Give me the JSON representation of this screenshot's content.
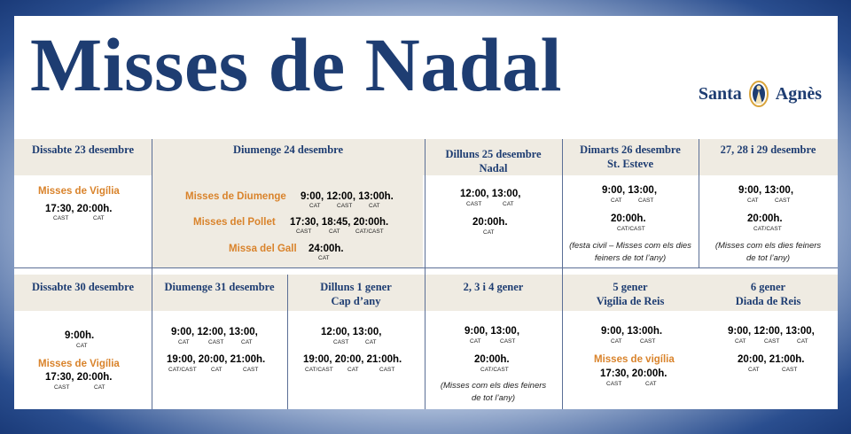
{
  "title": "Misses de Nadal",
  "logo": {
    "left": "Santa",
    "right": "Agnès"
  },
  "headers": {
    "sat23": "Dissabte 23 desembre",
    "sun24": "Diumenge 24 desembre",
    "mon25a": "Dilluns 25 desembre",
    "mon25b": "Nadal",
    "tue26a": "Dimarts 26 desembre",
    "tue26b": "St. Esteve",
    "d27": "27, 28 i 29 desembre",
    "sat30": "Dissabte 30 desembre",
    "sun31": "Diumenge 31 desembre",
    "jan1a": "Dilluns 1 gener",
    "jan1b": "Cap d’any",
    "jan234": "2, 3 i 4  gener",
    "jan5a": "5 gener",
    "jan5b": "Vigília de Reis",
    "jan6a": "6 gener",
    "jan6b": "Diada de Reis"
  },
  "sat23": {
    "label": "Misses de Vigília",
    "times": "17:30, 20:00h.",
    "l1": "CAST",
    "l2": "CAT"
  },
  "sun24": {
    "r1": {
      "label": "Misses de Diumenge",
      "times": "9:00, 12:00, 13:00h.",
      "l1": "CAT",
      "l2": "CAST",
      "l3": "CAT"
    },
    "r2": {
      "label": "Misses del Pollet",
      "times": "17:30, 18:45, 20:00h.",
      "l1": "CAST",
      "l2": "CAT",
      "l3": "CAT/CAST"
    },
    "r3": {
      "label": "Missa del Gall",
      "times": "24:00h.",
      "l1": "CAT"
    }
  },
  "mon25": {
    "t1": "12:00, 13:00,",
    "l1": "CAST",
    "l2": "CAT",
    "t2": "20:00h.",
    "l3": "CAT"
  },
  "tue26": {
    "t1": "9:00, 13:00,",
    "l1": "CAT",
    "l2": "CAST",
    "t2": "20:00h.",
    "l3": "CAT/CAST",
    "n1": "(festa civil – Misses com els dies",
    "n2": "feiners de tot l’any)"
  },
  "d27": {
    "t1": "9:00, 13:00,",
    "l1": "CAT",
    "l2": "CAST",
    "t2": "20:00h.",
    "l3": "CAT/CAST",
    "n1": "(Misses com els dies feiners",
    "n2": "de tot l’any)"
  },
  "sat30": {
    "t1": "9:00h.",
    "l1": "CAT",
    "label": "Misses de Vigília",
    "t2": "17:30, 20:00h.",
    "l2": "CAST",
    "l3": "CAT"
  },
  "sun31": {
    "t1": "9:00, 12:00, 13:00,",
    "l1": "CAT",
    "l2": "CAST",
    "l3": "CAT",
    "t2": "19:00, 20:00, 21:00h.",
    "l4": "CAT/CAST",
    "l5": "CAT",
    "l6": "CAST"
  },
  "jan1": {
    "t1": "12:00, 13:00,",
    "l1": "CAST",
    "l2": "CAT",
    "t2": "19:00, 20:00, 21:00h.",
    "l3": "CAT/CAST",
    "l4": "CAT",
    "l5": "CAST"
  },
  "jan234": {
    "t1": "9:00,  13:00,",
    "l1": "CAT",
    "l2": "CAST",
    "t2": "20:00h.",
    "l3": "CAT/CAST",
    "n1": "(Misses com els dies feiners",
    "n2": "de tot l’any)"
  },
  "jan5": {
    "t1": "9:00, 13:00h.",
    "l1": "CAT",
    "l2": "CAST",
    "label": "Misses de vigília",
    "t2": "17:30, 20:00h.",
    "l3": "CAST",
    "l4": "CAT"
  },
  "jan6": {
    "t1": "9:00, 12:00, 13:00,",
    "l1": "CAT",
    "l2": "CAST",
    "l3": "CAT",
    "t2": "20:00, 21:00h.",
    "l4": "CAT",
    "l5": "CAST"
  },
  "colors": {
    "navy": "#1e3d72",
    "orange": "#d9832b",
    "band": "#efebe2"
  }
}
